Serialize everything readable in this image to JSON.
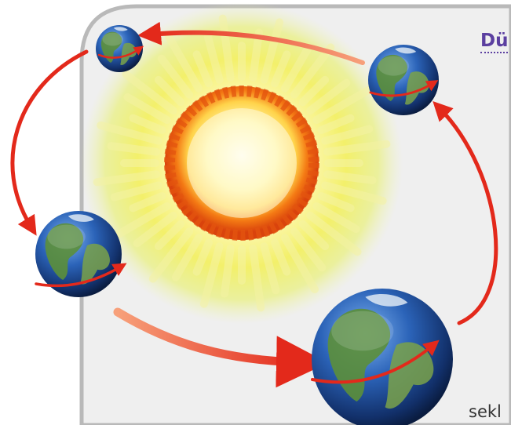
{
  "heading": "Dü",
  "footer_fragment": "sekl",
  "colors": {
    "panel_bg": "#efefef",
    "panel_border": "#b9b9b9",
    "heading": "#5b3fa0",
    "arrow": "#e8321f",
    "sun_core": "#fff6b0",
    "sun_ring": "#f06a12",
    "earth_ocean": "#1d4f9e",
    "earth_land": "#5c8f3a"
  },
  "illustration": {
    "sun": "sun-icon",
    "earth": "earth-globe-icon",
    "orbit_arrows": "orbit-arrow-icon",
    "rotation_arrows": "rotation-arrow-icon"
  }
}
